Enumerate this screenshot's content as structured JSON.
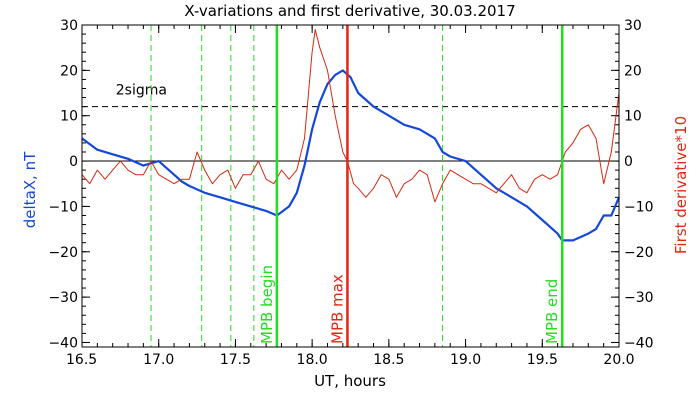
{
  "chart_data": {
    "type": "line",
    "title": "X-variations and first derivative, 30.03.2017",
    "xlabel": "UT, hours",
    "ylabel_left": "deltaX, nT",
    "ylabel_right": "First derivative*10",
    "xlim": [
      16.5,
      20.0
    ],
    "ylim": [
      -41,
      30
    ],
    "x_ticks": [
      "16.5",
      "17.0",
      "17.5",
      "18.0",
      "18.5",
      "19.0",
      "19.5",
      "20.0"
    ],
    "y_ticks": [
      "30",
      "20",
      "10",
      "0",
      "−10",
      "−20",
      "−30",
      "−40"
    ],
    "colors": {
      "deltaX": "#1448d8",
      "derivative": "#d42a10",
      "mpb": "#22dd22",
      "mpb_max": "#e02810",
      "axis_left": "#1448d8",
      "axis_right": "#e02810"
    },
    "threshold": {
      "label": "2sigma",
      "value": 12
    },
    "zero_line": 0,
    "markers_solid": [
      {
        "x": 17.77,
        "label": "MPB begin",
        "kind": "mpb"
      },
      {
        "x": 18.23,
        "label": "MPB max",
        "kind": "mpb_max"
      },
      {
        "x": 19.63,
        "label": "MPB end",
        "kind": "mpb"
      }
    ],
    "markers_dashed": [
      16.95,
      17.28,
      17.47,
      17.62,
      18.85
    ],
    "series": [
      {
        "name": "deltaX, nT",
        "x": [
          16.5,
          16.6,
          16.7,
          16.8,
          16.9,
          16.95,
          17.0,
          17.05,
          17.1,
          17.15,
          17.2,
          17.3,
          17.4,
          17.5,
          17.6,
          17.7,
          17.77,
          17.85,
          17.9,
          17.95,
          18.0,
          18.05,
          18.1,
          18.15,
          18.2,
          18.25,
          18.3,
          18.4,
          18.5,
          18.6,
          18.7,
          18.8,
          18.85,
          18.9,
          19.0,
          19.1,
          19.2,
          19.3,
          19.4,
          19.5,
          19.6,
          19.63,
          19.7,
          19.8,
          19.85,
          19.9,
          19.95,
          20.0
        ],
        "values": [
          5,
          2.5,
          1.5,
          0.5,
          -1,
          -0.5,
          0,
          -1.5,
          -3,
          -4.5,
          -5.5,
          -7,
          -8,
          -9,
          -10,
          -11,
          -12,
          -10,
          -7,
          -1,
          7,
          13,
          17,
          19,
          20,
          18.5,
          15,
          12,
          10,
          8,
          7,
          5,
          2,
          1,
          0,
          -3,
          -6,
          -8,
          -10,
          -13,
          -16,
          -17.5,
          -17.5,
          -16,
          -15,
          -12,
          -12,
          -8
        ]
      },
      {
        "name": "First derivative*10",
        "x": [
          16.5,
          16.55,
          16.6,
          16.65,
          16.7,
          16.75,
          16.8,
          16.85,
          16.9,
          16.95,
          17.0,
          17.05,
          17.1,
          17.15,
          17.2,
          17.25,
          17.3,
          17.35,
          17.4,
          17.45,
          17.5,
          17.55,
          17.6,
          17.65,
          17.7,
          17.75,
          17.8,
          17.85,
          17.9,
          17.95,
          18.0,
          18.02,
          18.05,
          18.1,
          18.15,
          18.2,
          18.23,
          18.27,
          18.3,
          18.35,
          18.4,
          18.45,
          18.5,
          18.55,
          18.6,
          18.65,
          18.7,
          18.75,
          18.8,
          18.85,
          18.9,
          18.95,
          19.0,
          19.05,
          19.1,
          19.15,
          19.2,
          19.25,
          19.3,
          19.35,
          19.4,
          19.45,
          19.5,
          19.55,
          19.6,
          19.63,
          19.65,
          19.7,
          19.75,
          19.8,
          19.85,
          19.9,
          19.95,
          20.0
        ],
        "values": [
          -3,
          -5,
          -2,
          -4,
          -2,
          0,
          -2,
          -3,
          -3,
          0,
          -3,
          -4,
          -5,
          -4,
          -4,
          2,
          -2,
          -5,
          -3,
          -2,
          -6,
          -3,
          -3,
          0,
          -4,
          -5,
          -2,
          -4,
          -2,
          5,
          24,
          29,
          25,
          20,
          10,
          2,
          0,
          -5,
          -6,
          -8,
          -6,
          -3,
          -4,
          -8,
          -5,
          -4,
          -2,
          -3,
          -9,
          -5,
          -2,
          -3,
          -4,
          -5,
          -5,
          -6,
          -7,
          -5,
          -3,
          -6,
          -7,
          -4,
          -3,
          -4,
          -3,
          0,
          2,
          4,
          7,
          8,
          5,
          -5,
          2,
          15
        ]
      }
    ]
  }
}
